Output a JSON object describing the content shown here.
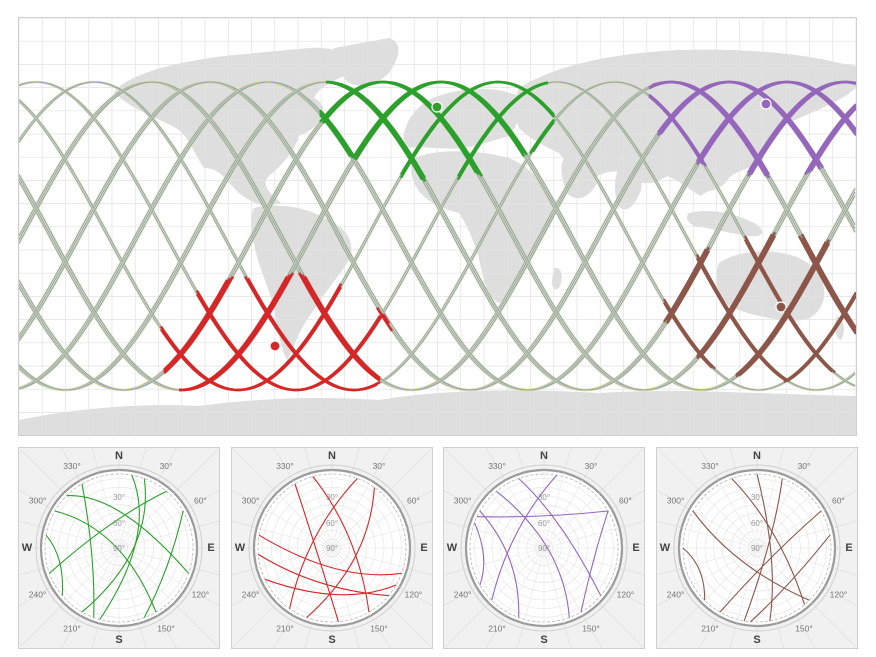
{
  "colors": {
    "land": "#dedede",
    "grid": "#e2e2e2",
    "track_gray": "#8fa6ad",
    "station_green": "#2ca02c",
    "station_red": "#d62728",
    "station_purple": "#9467bd",
    "station_brown": "#8c564b"
  },
  "stations": [
    {
      "name": "green",
      "color": "#2ca02c"
    },
    {
      "name": "red",
      "color": "#d62728"
    },
    {
      "name": "purple",
      "color": "#9467bd"
    },
    {
      "name": "brown",
      "color": "#8c564b"
    }
  ],
  "polar": {
    "cardinals": {
      "n": "N",
      "e": "E",
      "s": "S",
      "w": "W"
    },
    "azimuth_labels": {
      "a30": "30°",
      "a60": "60°",
      "a120": "120°",
      "a150": "150°",
      "a210": "210°",
      "a240": "240°",
      "a300": "300°",
      "a330": "330°"
    },
    "elevation_labels": {
      "e30": "30°",
      "e60": "60°",
      "e90": "90°"
    }
  }
}
